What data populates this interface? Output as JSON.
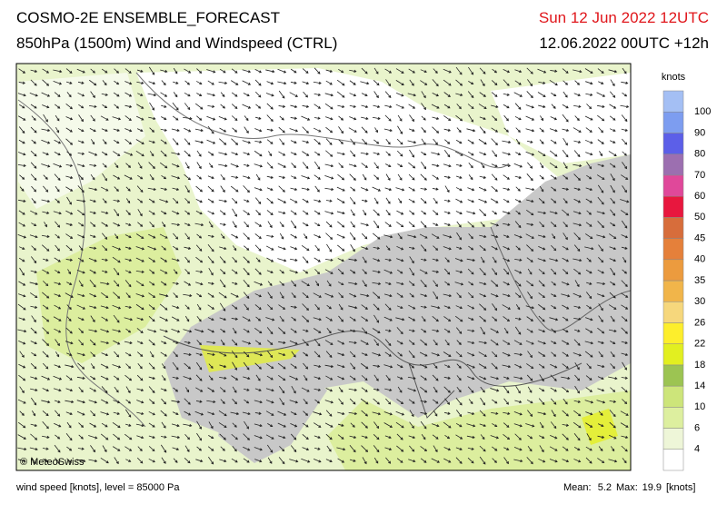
{
  "header": {
    "title": "COSMO-2E ENSEMBLE_FORECAST",
    "subtitle": "850hPa (1500m) Wind and Windspeed (CTRL)",
    "valid_time": "Sun 12 Jun 2022 12UTC",
    "run_time": "12.06.2022 00UTC +12h"
  },
  "legend": {
    "unit": "knots",
    "levels": [
      4,
      6,
      10,
      14,
      18,
      22,
      26,
      30,
      35,
      40,
      45,
      50,
      60,
      70,
      80,
      90,
      100
    ],
    "colors": [
      "#ffffff",
      "#eef6d8",
      "#ddef9f",
      "#cde57a",
      "#9cc452",
      "#e2ef20",
      "#fdee2c",
      "#f6d77c",
      "#f1b54a",
      "#ec9b3e",
      "#e5803a",
      "#d76d3b",
      "#e8173e",
      "#e0489a",
      "#9c6fb0",
      "#5c5fe8",
      "#7d9df0",
      "#a4bff4"
    ]
  },
  "map": {
    "credit": "© MeteoSwiss"
  },
  "footer": {
    "description": "wind speed [knots], level = 85000 Pa",
    "mean_label": "Mean:",
    "mean": 5.2,
    "max_label": "Max:",
    "max": 19.9,
    "unit": "[knots]"
  }
}
